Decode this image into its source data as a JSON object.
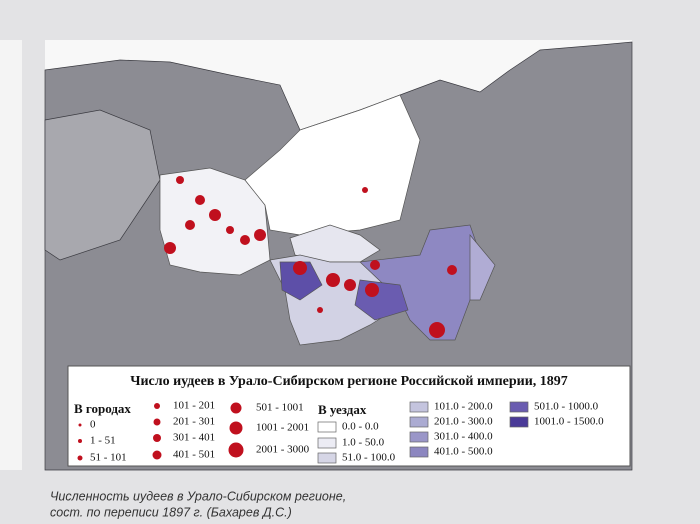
{
  "legend": {
    "title": "Число иудеев в Урало-Сибирском регионе Российской империи, 1897",
    "cities": {
      "title": "В городах",
      "items": [
        "0",
        "1 - 51",
        "51 - 101",
        "101 - 201",
        "201 - 301",
        "301 - 401",
        "401 - 501",
        "501 - 1001",
        "1001 - 2001",
        "2001 - 3000"
      ]
    },
    "districts": {
      "title": "В уездах",
      "items": [
        "0.0 - 0.0",
        "1.0 - 50.0",
        "51.0 - 100.0",
        "101.0 - 200.0",
        "201.0 - 300.0",
        "301.0 - 400.0",
        "401.0 - 500.0",
        "501.0 - 1000.0",
        "1001.0 - 1500.0"
      ]
    }
  },
  "caption": {
    "line1": "Численность иудеев в Урало-Сибирском регионе,",
    "line2": "сост. по переписи 1897 г. (Бахарев Д.С.)"
  }
}
